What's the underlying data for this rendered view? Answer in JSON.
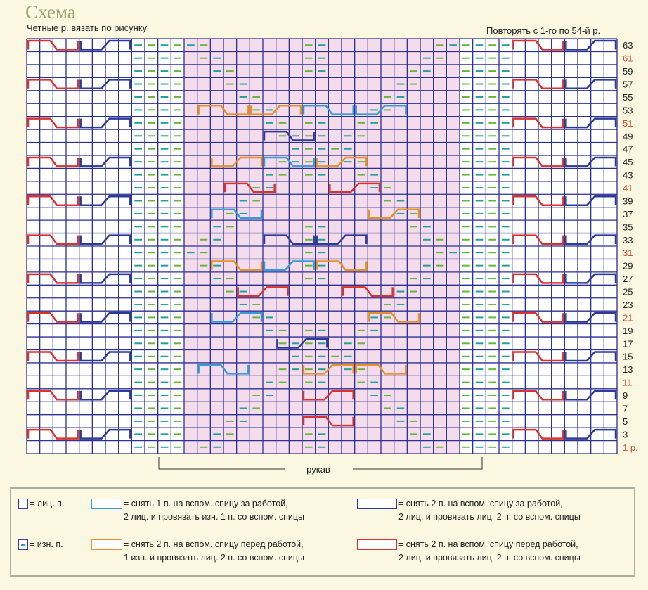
{
  "header": {
    "title": "Схема",
    "subtitle": "Четные р. вязать по рисунку",
    "repeat_note": "Повторять с 1-го по 54-й р."
  },
  "chart": {
    "columns": 45,
    "row_numbers": [
      "63",
      "61",
      "59",
      "57",
      "55",
      "53",
      "51",
      "49",
      "47",
      "45",
      "43",
      "41",
      "39",
      "37",
      "35",
      "33",
      "31",
      "29",
      "27",
      "25",
      "23",
      "21",
      "19",
      "17",
      "15",
      "13",
      "11",
      "9",
      "7",
      "5",
      "3",
      "1 р."
    ],
    "highlight_rows": [
      "61",
      "51",
      "41",
      "31",
      "21",
      "11",
      "1 р."
    ],
    "sleeve_label": "рукав",
    "colors": {
      "grid": "#2d3190",
      "knit_cable": "#d9332f",
      "back_cable": "#2e3a98",
      "purl_a": "#69b53c",
      "purl_b": "#23a09a",
      "mid_orange": "#e8902a",
      "mid_blue": "#3a9ad8",
      "row_highlight": "#d9462a",
      "center_tint": "#f4dcec"
    }
  },
  "legend": {
    "knit": "= лиц. п.",
    "purl": "= изн. п.",
    "c1": [
      "= снять 1 п. на вспом. спицу за работой,",
      "2 лиц. и провязать изн. 1 п. со вспом. спицы"
    ],
    "c2": [
      "= снять 2 п. на вспом. спицу перед работой,",
      "1 изн. и провязать лиц. 2 п. со вспом. спицы"
    ],
    "c3": [
      "= снять 2 п. на вспом. спицу за работой,",
      "2 лиц. и провязать лиц. 2 п. со вспом. спицы"
    ],
    "c4": [
      "= снять 2 п. на вспом. спицу перед работой,",
      "2 лиц. и провязать лиц. 2 п. со вспом. спицы"
    ]
  }
}
